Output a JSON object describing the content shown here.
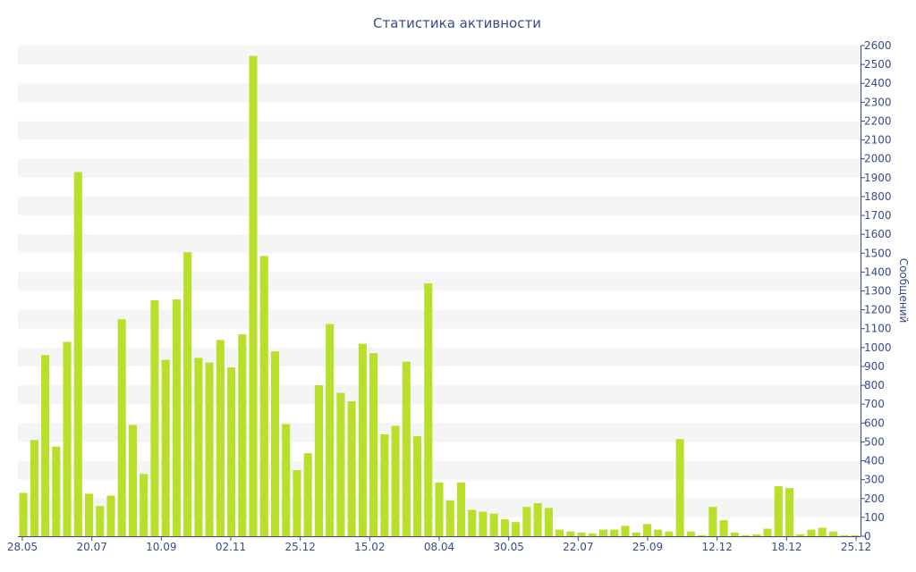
{
  "chart_data": {
    "type": "bar",
    "title": "Статистика активности",
    "xlabel": "",
    "ylabel": "Сообщений",
    "ylim": [
      0,
      2600
    ],
    "yticks": [
      0,
      100,
      200,
      300,
      400,
      500,
      600,
      700,
      800,
      900,
      1000,
      1100,
      1200,
      1300,
      1400,
      1500,
      1600,
      1700,
      1800,
      1900,
      2000,
      2100,
      2200,
      2300,
      2400,
      2500,
      2600
    ],
    "x_tick_labels": [
      "28.05",
      "20.07",
      "10.09",
      "02.11",
      "25.12",
      "15.02",
      "08.04",
      "30.05",
      "22.07",
      "25.09",
      "12.12",
      "18.12",
      "25.12"
    ],
    "values": [
      230,
      510,
      960,
      475,
      1030,
      1930,
      225,
      160,
      215,
      1150,
      590,
      330,
      1250,
      935,
      1255,
      1505,
      945,
      920,
      1040,
      895,
      1070,
      2545,
      1485,
      980,
      595,
      350,
      440,
      800,
      1125,
      760,
      715,
      1020,
      970,
      540,
      585,
      925,
      530,
      1340,
      285,
      190,
      285,
      140,
      130,
      120,
      90,
      75,
      155,
      175,
      150,
      35,
      25,
      20,
      15,
      35,
      35,
      55,
      20,
      65,
      35,
      25,
      515,
      25,
      5,
      155,
      85,
      20,
      5,
      10,
      40,
      265,
      255,
      10,
      35,
      45,
      25,
      5,
      5
    ],
    "colors": {
      "bar": "#b8e02a",
      "axis": "#3a4a8a",
      "band": "#f5f5f5",
      "text": "#3a4a8a"
    },
    "grid": "horizontal bands",
    "y_axis_side": "right"
  }
}
